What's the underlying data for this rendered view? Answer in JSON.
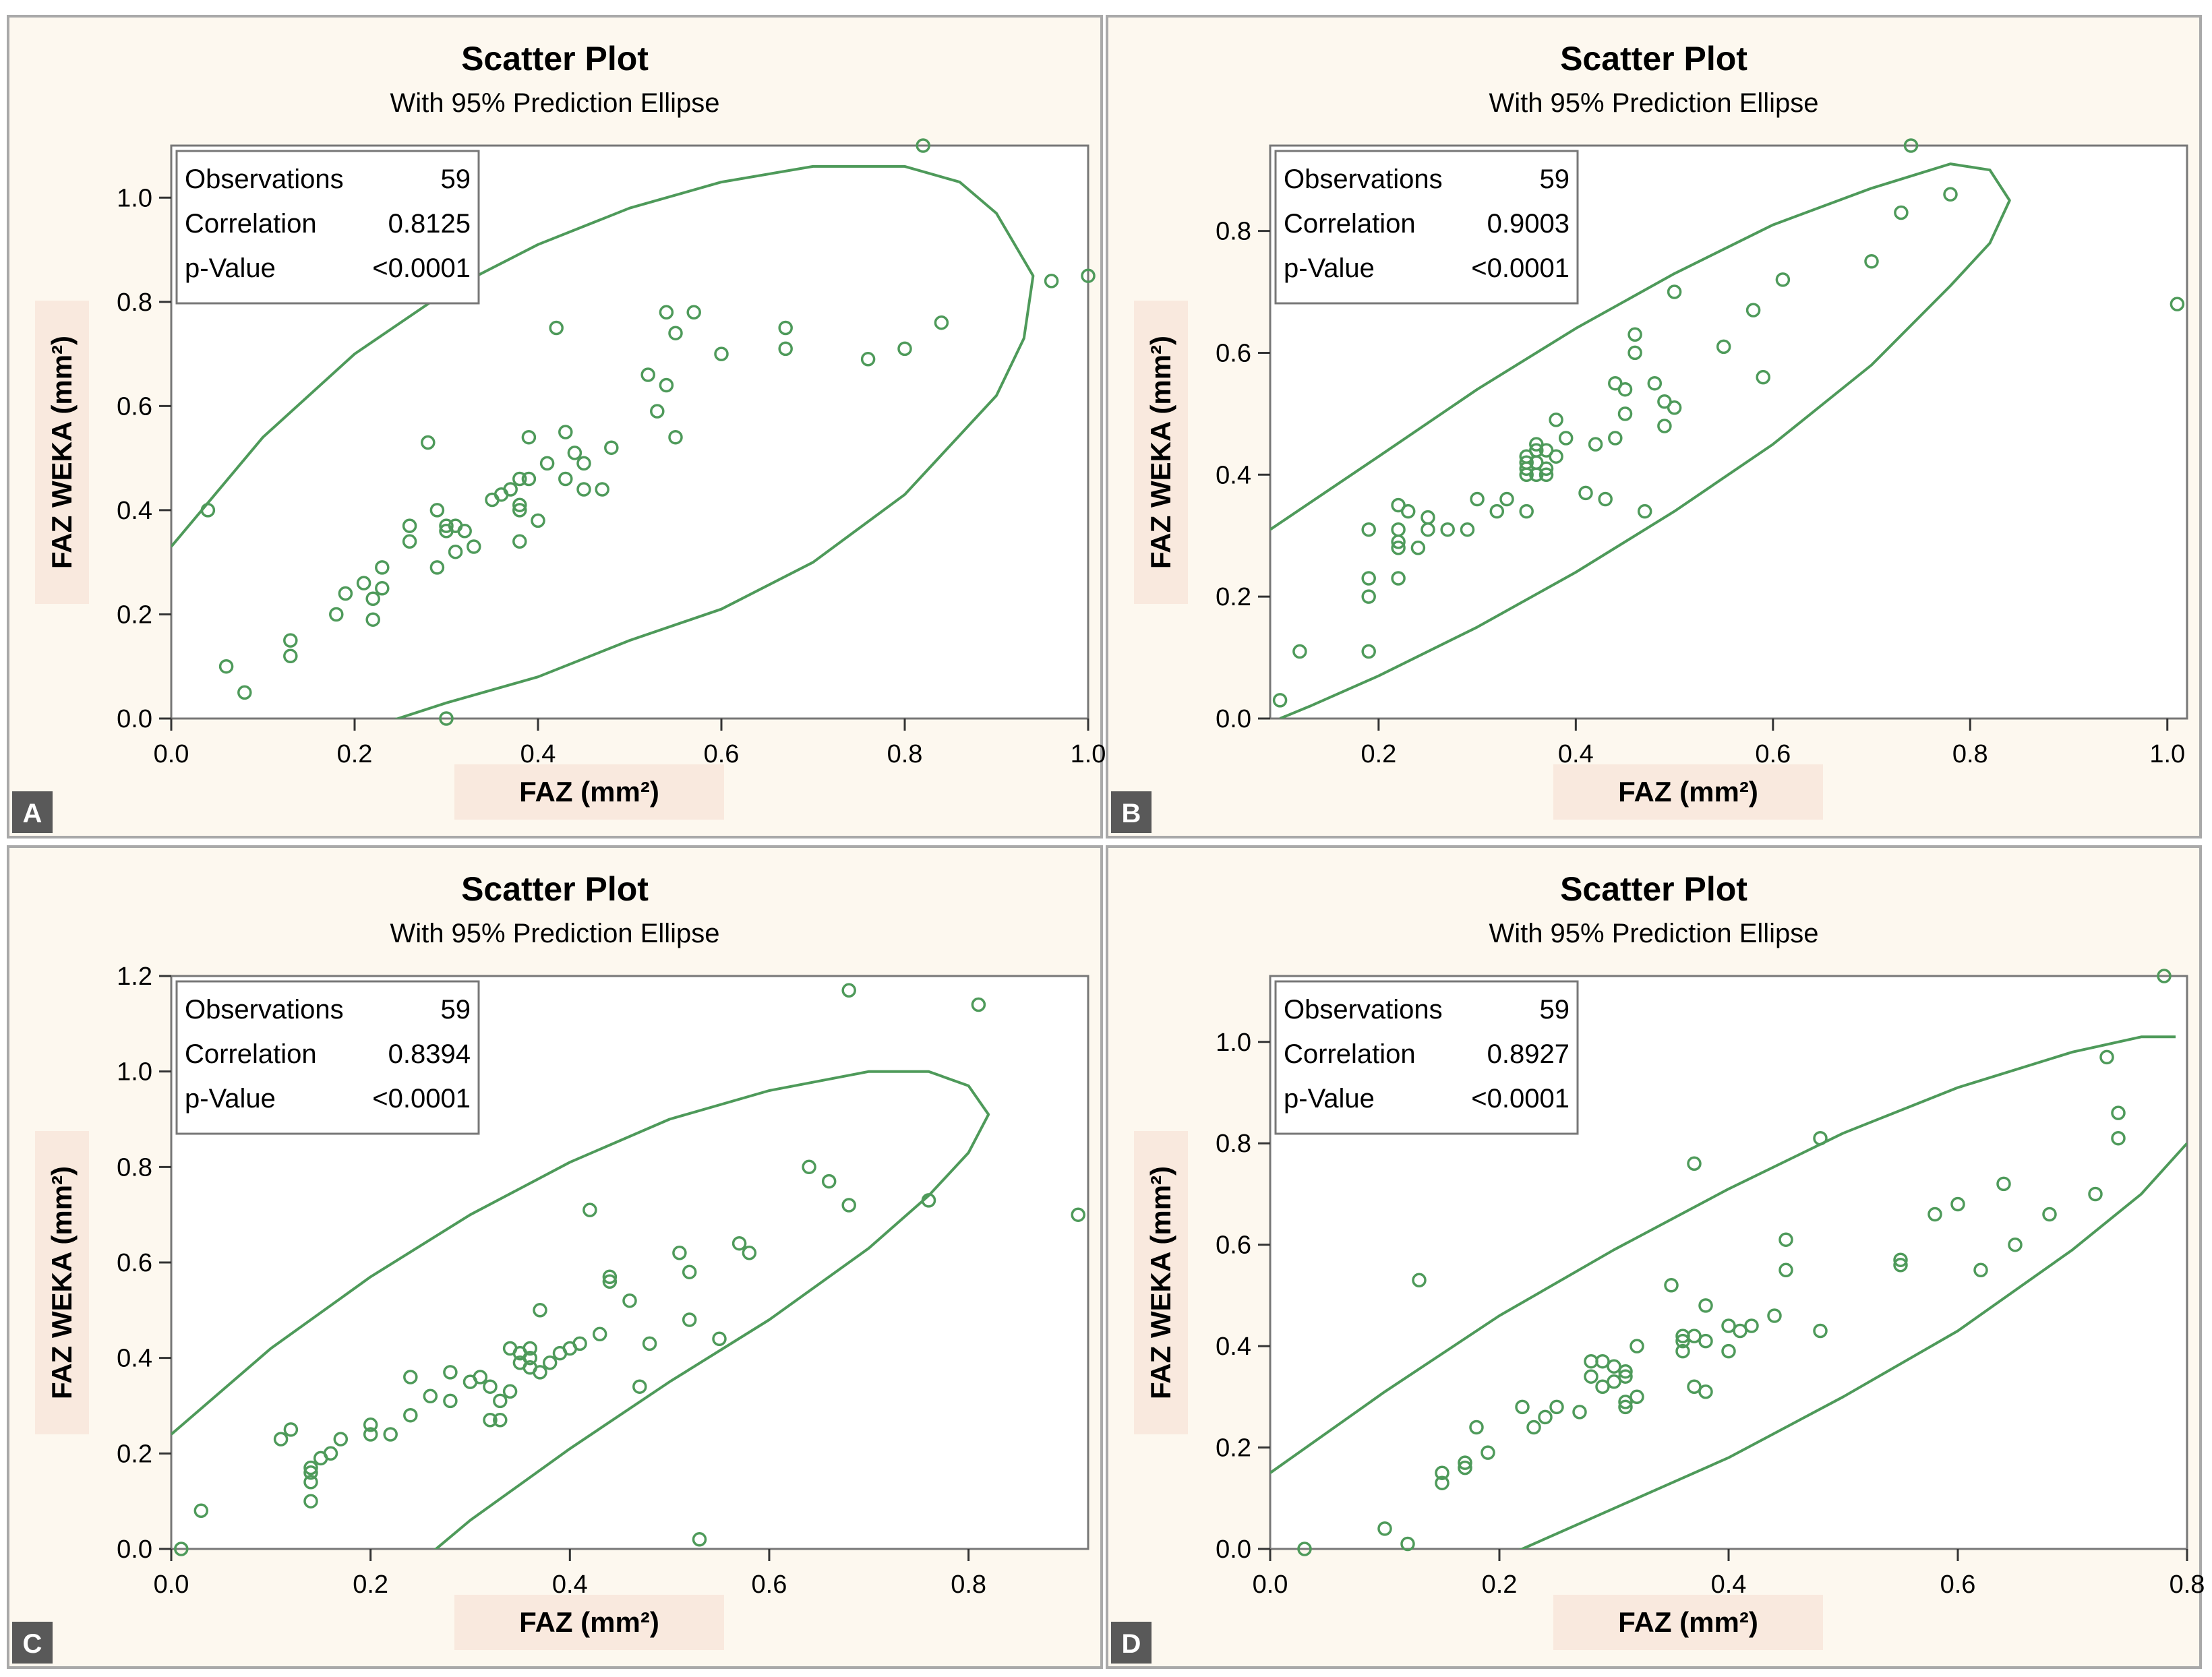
{
  "chart_data": [
    {
      "type": "scatter",
      "panel_label": "A",
      "title": "Scatter Plot",
      "subtitle": "With 95% Prediction Ellipse",
      "xlabel": "FAZ (mm²)",
      "ylabel": "FAZ WEKA (mm²)",
      "xlim": [
        0,
        1.0
      ],
      "ylim": [
        0,
        1.1
      ],
      "xticks": [
        0.0,
        0.2,
        0.4,
        0.6,
        0.8,
        1.0
      ],
      "yticks": [
        0.0,
        0.2,
        0.4,
        0.6,
        0.8,
        1.0
      ],
      "grid": false,
      "stats": [
        {
          "label": "Observations",
          "value": "59"
        },
        {
          "label": "Correlation",
          "value": "0.8125"
        },
        {
          "label": "p-Value",
          "value": "<0.0001"
        }
      ],
      "ellipse": [
        [
          0.0,
          0.33
        ],
        [
          0.1,
          0.54
        ],
        [
          0.2,
          0.7
        ],
        [
          0.3,
          0.82
        ],
        [
          0.4,
          0.91
        ],
        [
          0.5,
          0.98
        ],
        [
          0.6,
          1.03
        ],
        [
          0.7,
          1.06
        ],
        [
          0.8,
          1.06
        ],
        [
          0.86,
          1.03
        ],
        [
          0.9,
          0.97
        ],
        [
          0.94,
          0.85
        ],
        [
          0.93,
          0.73
        ],
        [
          0.9,
          0.62
        ],
        [
          0.8,
          0.43
        ],
        [
          0.7,
          0.3
        ],
        [
          0.6,
          0.21
        ],
        [
          0.5,
          0.15
        ],
        [
          0.4,
          0.08
        ],
        [
          0.3,
          0.03
        ],
        [
          0.23,
          -0.01
        ]
      ],
      "points": [
        [
          0.04,
          0.4
        ],
        [
          0.06,
          0.1
        ],
        [
          0.08,
          0.05
        ],
        [
          0.13,
          0.15
        ],
        [
          0.13,
          0.12
        ],
        [
          0.18,
          0.2
        ],
        [
          0.19,
          0.24
        ],
        [
          0.21,
          0.26
        ],
        [
          0.22,
          0.23
        ],
        [
          0.22,
          0.19
        ],
        [
          0.23,
          0.25
        ],
        [
          0.23,
          0.29
        ],
        [
          0.26,
          0.37
        ],
        [
          0.26,
          0.34
        ],
        [
          0.28,
          0.53
        ],
        [
          0.29,
          0.4
        ],
        [
          0.29,
          0.29
        ],
        [
          0.3,
          0.37
        ],
        [
          0.3,
          0.36
        ],
        [
          0.31,
          0.37
        ],
        [
          0.31,
          0.32
        ],
        [
          0.32,
          0.36
        ],
        [
          0.33,
          0.33
        ],
        [
          0.3,
          0.0
        ],
        [
          0.36,
          0.43
        ],
        [
          0.38,
          0.46
        ],
        [
          0.38,
          0.41
        ],
        [
          0.38,
          0.4
        ],
        [
          0.38,
          0.34
        ],
        [
          0.39,
          0.54
        ],
        [
          0.39,
          0.46
        ],
        [
          0.4,
          0.38
        ],
        [
          0.41,
          0.49
        ],
        [
          0.42,
          0.75
        ],
        [
          0.43,
          0.55
        ],
        [
          0.43,
          0.46
        ],
        [
          0.44,
          0.51
        ],
        [
          0.45,
          0.49
        ],
        [
          0.45,
          0.44
        ],
        [
          0.47,
          0.44
        ],
        [
          0.48,
          0.52
        ],
        [
          0.52,
          0.66
        ],
        [
          0.53,
          0.59
        ],
        [
          0.54,
          0.78
        ],
        [
          0.54,
          0.64
        ],
        [
          0.55,
          0.74
        ],
        [
          0.55,
          0.54
        ],
        [
          0.57,
          0.78
        ],
        [
          0.6,
          0.7
        ],
        [
          0.67,
          0.75
        ],
        [
          0.67,
          0.71
        ],
        [
          0.76,
          0.69
        ],
        [
          0.8,
          0.71
        ],
        [
          0.82,
          1.1
        ],
        [
          0.84,
          0.76
        ],
        [
          0.96,
          0.84
        ],
        [
          1.0,
          0.85
        ],
        [
          0.37,
          0.44
        ],
        [
          0.35,
          0.42
        ]
      ]
    },
    {
      "type": "scatter",
      "panel_label": "B",
      "title": "Scatter Plot",
      "subtitle": "With 95% Prediction Ellipse",
      "xlabel": "FAZ (mm²)",
      "ylabel": "FAZ WEKA (mm²)",
      "xlim": [
        0.09,
        1.02
      ],
      "ylim": [
        0,
        0.94
      ],
      "xticks": [
        0.2,
        0.4,
        0.6,
        0.8,
        1.0
      ],
      "yticks": [
        0.0,
        0.2,
        0.4,
        0.6,
        0.8
      ],
      "grid": false,
      "stats": [
        {
          "label": "Observations",
          "value": "59"
        },
        {
          "label": "Correlation",
          "value": "0.9003"
        },
        {
          "label": "p-Value",
          "value": "<0.0001"
        }
      ],
      "ellipse": [
        [
          0.09,
          0.31
        ],
        [
          0.2,
          0.43
        ],
        [
          0.3,
          0.54
        ],
        [
          0.4,
          0.64
        ],
        [
          0.5,
          0.73
        ],
        [
          0.6,
          0.81
        ],
        [
          0.7,
          0.87
        ],
        [
          0.78,
          0.91
        ],
        [
          0.82,
          0.9
        ],
        [
          0.84,
          0.85
        ],
        [
          0.82,
          0.78
        ],
        [
          0.78,
          0.71
        ],
        [
          0.7,
          0.58
        ],
        [
          0.6,
          0.45
        ],
        [
          0.5,
          0.34
        ],
        [
          0.4,
          0.24
        ],
        [
          0.3,
          0.15
        ],
        [
          0.2,
          0.07
        ],
        [
          0.13,
          0.02
        ],
        [
          0.1,
          0.0
        ]
      ],
      "points": [
        [
          0.1,
          0.03
        ],
        [
          0.12,
          0.11
        ],
        [
          0.19,
          0.11
        ],
        [
          0.19,
          0.2
        ],
        [
          0.19,
          0.23
        ],
        [
          0.19,
          0.31
        ],
        [
          0.22,
          0.23
        ],
        [
          0.22,
          0.28
        ],
        [
          0.22,
          0.29
        ],
        [
          0.22,
          0.31
        ],
        [
          0.22,
          0.35
        ],
        [
          0.23,
          0.34
        ],
        [
          0.24,
          0.28
        ],
        [
          0.25,
          0.31
        ],
        [
          0.25,
          0.33
        ],
        [
          0.27,
          0.31
        ],
        [
          0.29,
          0.31
        ],
        [
          0.3,
          0.36
        ],
        [
          0.32,
          0.34
        ],
        [
          0.33,
          0.36
        ],
        [
          0.35,
          0.34
        ],
        [
          0.35,
          0.4
        ],
        [
          0.35,
          0.41
        ],
        [
          0.35,
          0.42
        ],
        [
          0.35,
          0.43
        ],
        [
          0.36,
          0.4
        ],
        [
          0.36,
          0.42
        ],
        [
          0.36,
          0.45
        ],
        [
          0.37,
          0.4
        ],
        [
          0.37,
          0.41
        ],
        [
          0.37,
          0.44
        ],
        [
          0.38,
          0.43
        ],
        [
          0.38,
          0.49
        ],
        [
          0.39,
          0.46
        ],
        [
          0.41,
          0.37
        ],
        [
          0.42,
          0.45
        ],
        [
          0.43,
          0.36
        ],
        [
          0.44,
          0.46
        ],
        [
          0.44,
          0.55
        ],
        [
          0.45,
          0.5
        ],
        [
          0.45,
          0.54
        ],
        [
          0.46,
          0.6
        ],
        [
          0.46,
          0.63
        ],
        [
          0.47,
          0.34
        ],
        [
          0.48,
          0.55
        ],
        [
          0.49,
          0.48
        ],
        [
          0.49,
          0.52
        ],
        [
          0.5,
          0.51
        ],
        [
          0.5,
          0.7
        ],
        [
          0.55,
          0.61
        ],
        [
          0.58,
          0.67
        ],
        [
          0.59,
          0.56
        ],
        [
          0.61,
          0.72
        ],
        [
          0.7,
          0.75
        ],
        [
          0.73,
          0.83
        ],
        [
          0.74,
          0.94
        ],
        [
          0.78,
          0.86
        ],
        [
          1.01,
          0.68
        ],
        [
          0.36,
          0.44
        ]
      ]
    },
    {
      "type": "scatter",
      "panel_label": "C",
      "title": "Scatter Plot",
      "subtitle": "With 95% Prediction Ellipse",
      "xlabel": "FAZ (mm²)",
      "ylabel": "FAZ WEKA (mm²)",
      "xlim": [
        0,
        0.92
      ],
      "ylim": [
        0,
        1.2
      ],
      "xticks": [
        0.0,
        0.2,
        0.4,
        0.6,
        0.8
      ],
      "yticks": [
        0.0,
        0.2,
        0.4,
        0.6,
        0.8,
        1.0,
        1.2
      ],
      "grid": false,
      "stats": [
        {
          "label": "Observations",
          "value": "59"
        },
        {
          "label": "Correlation",
          "value": "0.8394"
        },
        {
          "label": "p-Value",
          "value": "<0.0001"
        }
      ],
      "ellipse": [
        [
          0.0,
          0.24
        ],
        [
          0.1,
          0.42
        ],
        [
          0.2,
          0.57
        ],
        [
          0.3,
          0.7
        ],
        [
          0.4,
          0.81
        ],
        [
          0.5,
          0.9
        ],
        [
          0.6,
          0.96
        ],
        [
          0.7,
          1.0
        ],
        [
          0.76,
          1.0
        ],
        [
          0.8,
          0.97
        ],
        [
          0.82,
          0.91
        ],
        [
          0.8,
          0.83
        ],
        [
          0.76,
          0.74
        ],
        [
          0.7,
          0.63
        ],
        [
          0.6,
          0.48
        ],
        [
          0.5,
          0.35
        ],
        [
          0.4,
          0.21
        ],
        [
          0.3,
          0.06
        ],
        [
          0.26,
          -0.01
        ]
      ],
      "points": [
        [
          0.01,
          0.0
        ],
        [
          0.03,
          0.08
        ],
        [
          0.11,
          0.23
        ],
        [
          0.12,
          0.25
        ],
        [
          0.14,
          0.1
        ],
        [
          0.14,
          0.14
        ],
        [
          0.14,
          0.16
        ],
        [
          0.14,
          0.17
        ],
        [
          0.15,
          0.19
        ],
        [
          0.16,
          0.2
        ],
        [
          0.17,
          0.23
        ],
        [
          0.2,
          0.24
        ],
        [
          0.2,
          0.26
        ],
        [
          0.22,
          0.24
        ],
        [
          0.24,
          0.28
        ],
        [
          0.24,
          0.36
        ],
        [
          0.26,
          0.32
        ],
        [
          0.28,
          0.31
        ],
        [
          0.28,
          0.37
        ],
        [
          0.3,
          0.35
        ],
        [
          0.31,
          0.36
        ],
        [
          0.32,
          0.27
        ],
        [
          0.32,
          0.34
        ],
        [
          0.33,
          0.27
        ],
        [
          0.33,
          0.31
        ],
        [
          0.34,
          0.33
        ],
        [
          0.34,
          0.42
        ],
        [
          0.35,
          0.39
        ],
        [
          0.35,
          0.41
        ],
        [
          0.36,
          0.4
        ],
        [
          0.36,
          0.42
        ],
        [
          0.37,
          0.37
        ],
        [
          0.37,
          0.5
        ],
        [
          0.38,
          0.39
        ],
        [
          0.39,
          0.41
        ],
        [
          0.4,
          0.42
        ],
        [
          0.41,
          0.43
        ],
        [
          0.42,
          0.71
        ],
        [
          0.43,
          0.45
        ],
        [
          0.44,
          0.56
        ],
        [
          0.44,
          0.57
        ],
        [
          0.46,
          0.52
        ],
        [
          0.47,
          0.34
        ],
        [
          0.48,
          0.43
        ],
        [
          0.51,
          0.62
        ],
        [
          0.52,
          0.48
        ],
        [
          0.52,
          0.58
        ],
        [
          0.53,
          0.02
        ],
        [
          0.55,
          0.44
        ],
        [
          0.57,
          0.64
        ],
        [
          0.58,
          0.62
        ],
        [
          0.64,
          0.8
        ],
        [
          0.66,
          0.77
        ],
        [
          0.68,
          0.72
        ],
        [
          0.68,
          1.17
        ],
        [
          0.76,
          0.73
        ],
        [
          0.81,
          1.14
        ],
        [
          0.91,
          0.7
        ],
        [
          0.36,
          0.38
        ]
      ]
    },
    {
      "type": "scatter",
      "panel_label": "D",
      "title": "Scatter Plot",
      "subtitle": "With 95% Prediction Ellipse",
      "xlabel": "FAZ (mm²)",
      "ylabel": "FAZ WEKA (mm²)",
      "xlim": [
        0,
        0.8
      ],
      "ylim": [
        0,
        1.13
      ],
      "xticks": [
        0.0,
        0.2,
        0.4,
        0.6,
        0.8
      ],
      "yticks": [
        0.0,
        0.2,
        0.4,
        0.6,
        0.8,
        1.0
      ],
      "grid": false,
      "stats": [
        {
          "label": "Observations",
          "value": "59"
        },
        {
          "label": "Correlation",
          "value": "0.8927"
        },
        {
          "label": "p-Value",
          "value": "<0.0001"
        }
      ],
      "ellipse_upper": [
        [
          0.0,
          0.15
        ],
        [
          0.1,
          0.31
        ],
        [
          0.2,
          0.46
        ],
        [
          0.3,
          0.59
        ],
        [
          0.4,
          0.71
        ],
        [
          0.5,
          0.82
        ],
        [
          0.6,
          0.91
        ],
        [
          0.7,
          0.98
        ],
        [
          0.76,
          1.01
        ],
        [
          0.79,
          1.01
        ]
      ],
      "ellipse_lower": [
        [
          0.21,
          -0.01
        ],
        [
          0.3,
          0.08
        ],
        [
          0.4,
          0.18
        ],
        [
          0.5,
          0.3
        ],
        [
          0.6,
          0.43
        ],
        [
          0.7,
          0.59
        ],
        [
          0.76,
          0.7
        ],
        [
          0.8,
          0.8
        ]
      ],
      "points": [
        [
          0.03,
          0.0
        ],
        [
          0.1,
          0.04
        ],
        [
          0.12,
          0.01
        ],
        [
          0.13,
          0.53
        ],
        [
          0.15,
          0.13
        ],
        [
          0.15,
          0.15
        ],
        [
          0.17,
          0.16
        ],
        [
          0.17,
          0.17
        ],
        [
          0.18,
          0.24
        ],
        [
          0.19,
          0.19
        ],
        [
          0.22,
          0.28
        ],
        [
          0.23,
          0.24
        ],
        [
          0.24,
          0.26
        ],
        [
          0.25,
          0.28
        ],
        [
          0.27,
          0.27
        ],
        [
          0.28,
          0.34
        ],
        [
          0.28,
          0.37
        ],
        [
          0.29,
          0.32
        ],
        [
          0.29,
          0.37
        ],
        [
          0.3,
          0.33
        ],
        [
          0.3,
          0.36
        ],
        [
          0.31,
          0.28
        ],
        [
          0.31,
          0.29
        ],
        [
          0.31,
          0.34
        ],
        [
          0.31,
          0.35
        ],
        [
          0.32,
          0.3
        ],
        [
          0.32,
          0.4
        ],
        [
          0.35,
          0.52
        ],
        [
          0.36,
          0.39
        ],
        [
          0.36,
          0.41
        ],
        [
          0.36,
          0.42
        ],
        [
          0.37,
          0.32
        ],
        [
          0.37,
          0.76
        ],
        [
          0.38,
          0.31
        ],
        [
          0.38,
          0.41
        ],
        [
          0.38,
          0.48
        ],
        [
          0.4,
          0.39
        ],
        [
          0.4,
          0.44
        ],
        [
          0.41,
          0.43
        ],
        [
          0.42,
          0.44
        ],
        [
          0.44,
          0.46
        ],
        [
          0.45,
          0.55
        ],
        [
          0.45,
          0.61
        ],
        [
          0.48,
          0.43
        ],
        [
          0.48,
          0.81
        ],
        [
          0.55,
          0.56
        ],
        [
          0.55,
          0.57
        ],
        [
          0.58,
          0.66
        ],
        [
          0.6,
          0.68
        ],
        [
          0.62,
          0.55
        ],
        [
          0.64,
          0.72
        ],
        [
          0.65,
          0.6
        ],
        [
          0.68,
          0.66
        ],
        [
          0.72,
          0.7
        ],
        [
          0.73,
          0.97
        ],
        [
          0.74,
          0.81
        ],
        [
          0.74,
          0.86
        ],
        [
          0.78,
          1.13
        ],
        [
          0.37,
          0.42
        ]
      ]
    }
  ],
  "colors": {
    "panel_bg": "#fdf8ef",
    "plot_bg": "#ffffff",
    "marker": "#4e9a5a",
    "ellipse": "#4e9a5a",
    "label_band": "#f9e9de",
    "panel_label_bg": "#595959"
  }
}
